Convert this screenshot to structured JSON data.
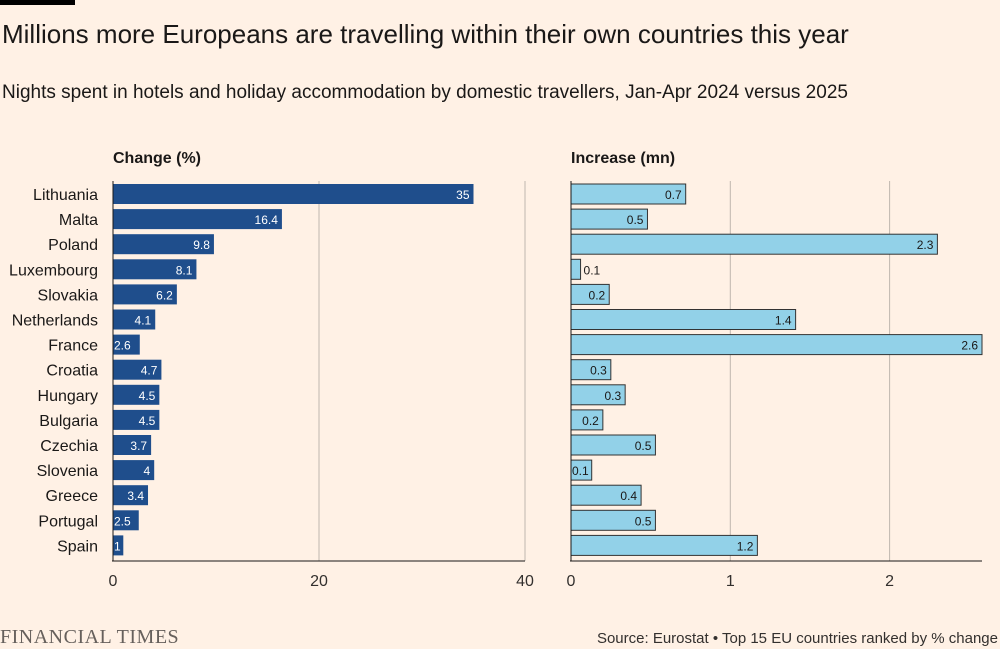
{
  "header": {
    "title": "Millions more Europeans are travelling within their own countries this year",
    "subtitle": "Nights spent in hotels and holiday accommodation by domestic travellers, Jan-Apr 2024 versus 2025"
  },
  "footer": {
    "logo": "FINANCIAL TIMES",
    "source": "Source: Eurostat • Top 15 EU countries ranked by % change"
  },
  "colors": {
    "background": "#fff1e5",
    "bar_left": "#1f4e8c",
    "bar_right": "#92d1e8",
    "bar_outline": "#333333",
    "grid": "#bfb7ae"
  },
  "chart_data": [
    {
      "type": "bar",
      "orientation": "horizontal",
      "title": "Change (%)",
      "categories": [
        "Lithuania",
        "Malta",
        "Poland",
        "Luxembourg",
        "Slovakia",
        "Netherlands",
        "France",
        "Croatia",
        "Hungary",
        "Bulgaria",
        "Czechia",
        "Slovenia",
        "Greece",
        "Portugal",
        "Spain"
      ],
      "values": [
        35,
        16.4,
        9.8,
        8.1,
        6.2,
        4.1,
        2.6,
        4.7,
        4.5,
        4.5,
        3.7,
        4,
        3.4,
        2.5,
        1
      ],
      "labels": [
        "35",
        "16.4",
        "9.8",
        "8.1",
        "6.2",
        "4.1",
        "2.6",
        "4.7",
        "4.5",
        "4.5",
        "3.7",
        "4",
        "3.4",
        "2.5",
        "1"
      ],
      "xlim": [
        0,
        40
      ],
      "ticks": [
        0,
        20,
        40
      ],
      "tick_labels": [
        "0",
        "20",
        "40"
      ]
    },
    {
      "type": "bar",
      "orientation": "horizontal",
      "title": "Increase (mn)",
      "categories": [
        "Lithuania",
        "Malta",
        "Poland",
        "Luxembourg",
        "Slovakia",
        "Netherlands",
        "France",
        "Croatia",
        "Hungary",
        "Bulgaria",
        "Czechia",
        "Slovenia",
        "Greece",
        "Portugal",
        "Spain"
      ],
      "values": [
        0.72,
        0.48,
        2.3,
        0.06,
        0.24,
        1.41,
        2.58,
        0.25,
        0.34,
        0.2,
        0.53,
        0.13,
        0.44,
        0.53,
        1.17
      ],
      "labels": [
        "0.7",
        "0.5",
        "2.3",
        "0.1",
        "0.2",
        "1.4",
        "2.6",
        "0.3",
        "0.3",
        "0.2",
        "0.5",
        "0.1",
        "0.4",
        "0.5",
        "1.2"
      ],
      "xlim": [
        0,
        2.58
      ],
      "ticks": [
        0,
        1,
        2
      ],
      "tick_labels": [
        "0",
        "1",
        "2"
      ]
    }
  ]
}
